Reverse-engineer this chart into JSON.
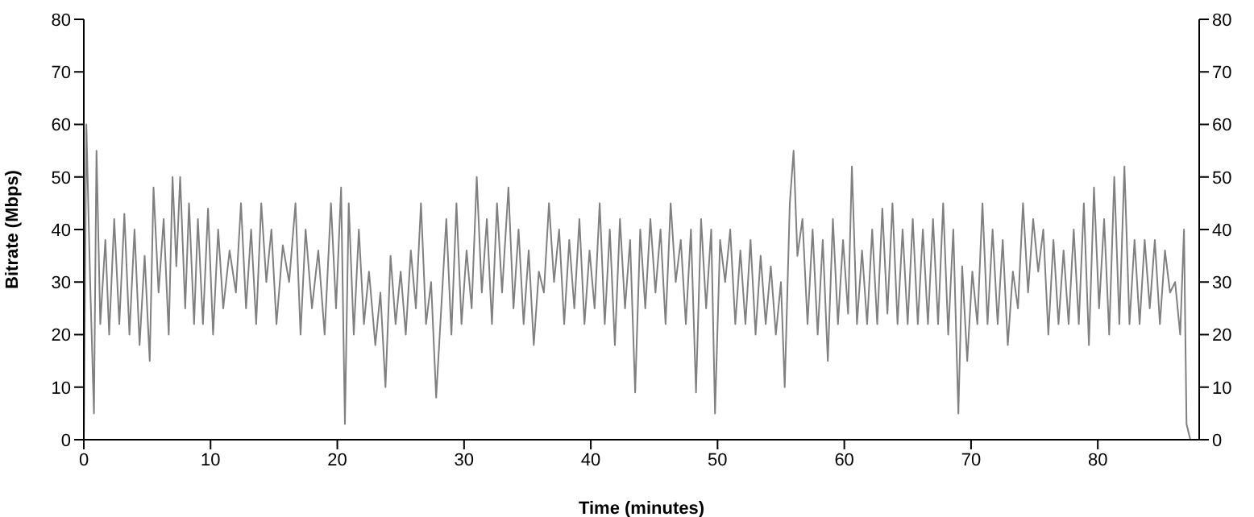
{
  "chart_data": {
    "type": "line",
    "xlabel": "Time (minutes)",
    "ylabel": "Bitrate (Mbps)",
    "x": [
      0,
      0.2,
      0.5,
      0.8,
      1.0,
      1.3,
      1.7,
      2.0,
      2.4,
      2.8,
      3.2,
      3.6,
      4.0,
      4.4,
      4.8,
      5.2,
      5.5,
      5.9,
      6.3,
      6.7,
      7.0,
      7.3,
      7.6,
      8.0,
      8.3,
      8.7,
      9.0,
      9.4,
      9.8,
      10.2,
      10.6,
      11.0,
      11.5,
      12.0,
      12.4,
      12.8,
      13.2,
      13.6,
      14.0,
      14.4,
      14.8,
      15.2,
      15.7,
      16.2,
      16.7,
      17.1,
      17.5,
      18.0,
      18.5,
      19.0,
      19.5,
      19.9,
      20.3,
      20.6,
      20.9,
      21.3,
      21.7,
      22.1,
      22.5,
      23.0,
      23.4,
      23.8,
      24.2,
      24.6,
      25.0,
      25.4,
      25.8,
      26.2,
      26.6,
      27.0,
      27.4,
      27.8,
      28.2,
      28.6,
      29.0,
      29.4,
      29.8,
      30.2,
      30.6,
      31.0,
      31.4,
      31.8,
      32.2,
      32.6,
      33.0,
      33.5,
      33.9,
      34.3,
      34.7,
      35.1,
      35.5,
      35.9,
      36.3,
      36.7,
      37.1,
      37.5,
      37.9,
      38.3,
      38.7,
      39.1,
      39.5,
      39.9,
      40.3,
      40.7,
      41.1,
      41.5,
      41.9,
      42.3,
      42.7,
      43.1,
      43.5,
      43.9,
      44.3,
      44.7,
      45.1,
      45.5,
      45.9,
      46.3,
      46.7,
      47.1,
      47.5,
      47.9,
      48.3,
      48.7,
      49.1,
      49.5,
      49.8,
      50.2,
      50.6,
      51.0,
      51.4,
      51.8,
      52.2,
      52.6,
      53.0,
      53.4,
      53.8,
      54.2,
      54.6,
      55.0,
      55.3,
      55.7,
      56.0,
      56.3,
      56.7,
      57.1,
      57.5,
      57.9,
      58.3,
      58.7,
      59.1,
      59.5,
      59.9,
      60.3,
      60.6,
      61.0,
      61.4,
      61.8,
      62.2,
      62.6,
      63.0,
      63.4,
      63.8,
      64.2,
      64.6,
      65.0,
      65.4,
      65.8,
      66.2,
      66.6,
      67.0,
      67.4,
      67.8,
      68.2,
      68.6,
      69.0,
      69.3,
      69.7,
      70.1,
      70.5,
      70.9,
      71.3,
      71.7,
      72.1,
      72.5,
      72.9,
      73.3,
      73.7,
      74.1,
      74.5,
      74.9,
      75.3,
      75.7,
      76.1,
      76.5,
      76.9,
      77.3,
      77.7,
      78.1,
      78.5,
      78.9,
      79.3,
      79.7,
      80.1,
      80.5,
      80.9,
      81.3,
      81.7,
      82.1,
      82.5,
      82.9,
      83.3,
      83.7,
      84.1,
      84.5,
      84.9,
      85.3,
      85.7,
      86.1,
      86.5,
      86.8,
      87.0,
      87.3,
      87.6
    ],
    "series": [
      {
        "color": "#808080",
        "values": [
          0,
          60,
          30,
          5,
          55,
          22,
          38,
          20,
          42,
          22,
          43,
          20,
          40,
          18,
          35,
          15,
          48,
          28,
          42,
          20,
          50,
          33,
          50,
          25,
          45,
          22,
          42,
          22,
          44,
          20,
          40,
          25,
          36,
          28,
          45,
          25,
          40,
          22,
          45,
          30,
          40,
          22,
          37,
          30,
          45,
          20,
          40,
          25,
          36,
          20,
          45,
          25,
          48,
          3,
          45,
          20,
          40,
          22,
          32,
          18,
          28,
          10,
          35,
          22,
          32,
          20,
          36,
          25,
          45,
          22,
          30,
          8,
          25,
          42,
          20,
          45,
          22,
          36,
          25,
          50,
          28,
          42,
          22,
          45,
          28,
          48,
          25,
          40,
          22,
          36,
          18,
          32,
          28,
          45,
          30,
          40,
          22,
          38,
          25,
          42,
          22,
          36,
          25,
          45,
          22,
          40,
          18,
          42,
          25,
          38,
          9,
          40,
          25,
          42,
          28,
          40,
          22,
          45,
          30,
          38,
          22,
          40,
          9,
          42,
          25,
          40,
          5,
          38,
          30,
          40,
          22,
          36,
          22,
          38,
          20,
          35,
          22,
          33,
          20,
          30,
          10,
          45,
          55,
          35,
          42,
          22,
          40,
          20,
          38,
          15,
          42,
          22,
          38,
          24,
          52,
          22,
          36,
          22,
          40,
          22,
          44,
          24,
          45,
          22,
          40,
          22,
          42,
          22,
          40,
          22,
          42,
          22,
          45,
          20,
          40,
          5,
          33,
          15,
          32,
          22,
          45,
          22,
          40,
          22,
          38,
          18,
          32,
          25,
          45,
          28,
          42,
          32,
          40,
          20,
          38,
          22,
          36,
          22,
          40,
          22,
          45,
          18,
          48,
          25,
          42,
          20,
          50,
          22,
          52,
          22,
          38,
          22,
          38,
          25,
          38,
          22,
          36,
          28,
          30,
          20,
          40,
          3,
          0,
          0
        ]
      }
    ],
    "xlim": [
      0,
      88
    ],
    "xticks": [
      0,
      10,
      20,
      30,
      40,
      50,
      60,
      70,
      80
    ],
    "ylim": [
      0,
      80
    ],
    "yticks": [
      0,
      10,
      20,
      30,
      40,
      50,
      60,
      70,
      80
    ],
    "y2lim": [
      0,
      80
    ],
    "y2ticks": [
      0,
      10,
      20,
      30,
      40,
      50,
      60,
      70,
      80
    ],
    "grid": false,
    "legend": false,
    "marker": "none",
    "line_style": "solid"
  }
}
